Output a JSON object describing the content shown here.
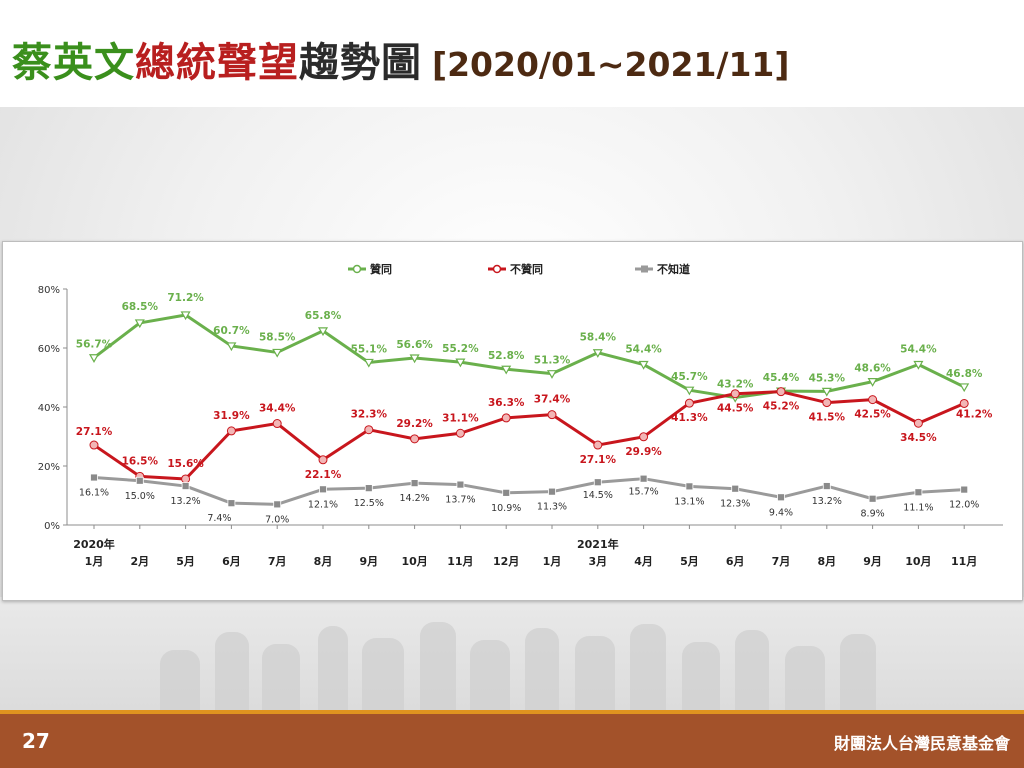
{
  "title": {
    "parts": [
      {
        "text": "蔡英文",
        "color": "#3a8f1c"
      },
      {
        "text": "總統聲望",
        "color": "#b81f1f"
      },
      {
        "text": "趨勢圖",
        "color": "#2b2b2b"
      }
    ],
    "date_range": "[2020/01~2021/11]"
  },
  "footer": {
    "page_number": "27",
    "organization": "財團法人台灣民意基金會"
  },
  "colors": {
    "approve": "#6ab04c",
    "disapprove": "#c8161d",
    "unknown": "#9a9a9a",
    "footer_bg": "#a3522a",
    "footer_stripe": "#e0931f"
  },
  "chart_data": {
    "type": "line",
    "title": "",
    "xlabel": "",
    "ylabel": "",
    "ylim": [
      0,
      80
    ],
    "y_ticks": [
      "0%",
      "20%",
      "40%",
      "60%",
      "80%"
    ],
    "grid": false,
    "legend_position": "top-center",
    "year_labels": [
      {
        "index": 0,
        "text": "2020年"
      },
      {
        "index": 11,
        "text": "2021年"
      }
    ],
    "categories": [
      "1月",
      "2月",
      "5月",
      "6月",
      "7月",
      "8月",
      "9月",
      "10月",
      "11月",
      "12月",
      "1月",
      "3月",
      "4月",
      "5月",
      "6月",
      "7月",
      "8月",
      "9月",
      "10月",
      "11月"
    ],
    "series": [
      {
        "name": "贊同",
        "color": "#6ab04c",
        "values": [
          56.7,
          68.5,
          71.2,
          60.7,
          58.5,
          65.8,
          55.1,
          56.6,
          55.2,
          52.8,
          51.3,
          58.4,
          54.4,
          45.7,
          43.2,
          45.4,
          45.3,
          48.6,
          54.4,
          46.8
        ],
        "labels": [
          "56.7%",
          "68.5%",
          "71.2%",
          "60.7%",
          "58.5%",
          "65.8%",
          "55.1%",
          "56.6%",
          "55.2%",
          "52.8%",
          "51.3%",
          "58.4%",
          "54.4%",
          "45.7%",
          "43.2%",
          "45.4%",
          "45.3%",
          "48.6%",
          "54.4%",
          "46.8%"
        ]
      },
      {
        "name": "不贊同",
        "color": "#c8161d",
        "values": [
          27.1,
          16.5,
          15.6,
          31.9,
          34.4,
          22.1,
          32.3,
          29.2,
          31.1,
          36.3,
          37.4,
          27.1,
          29.9,
          41.3,
          44.5,
          45.2,
          41.5,
          42.5,
          34.5,
          41.2
        ],
        "labels": [
          "27.1%",
          "16.5%",
          "15.6%",
          "31.9%",
          "34.4%",
          "22.1%",
          "32.3%",
          "29.2%",
          "31.1%",
          "36.3%",
          "37.4%",
          "27.1%",
          "29.9%",
          "41.3%",
          "44.5%",
          "45.2%",
          "41.5%",
          "42.5%",
          "34.5%",
          "41.2%"
        ]
      },
      {
        "name": "不知道",
        "color": "#9a9a9a",
        "values": [
          16.1,
          15.0,
          13.2,
          7.4,
          7.0,
          12.1,
          12.5,
          14.2,
          13.7,
          10.9,
          11.3,
          14.5,
          15.7,
          13.1,
          12.3,
          9.4,
          13.2,
          8.9,
          11.1,
          12.0
        ],
        "labels": [
          "16.1%",
          "15.0%",
          "13.2%",
          "7.4%",
          "7.0%",
          "12.1%",
          "12.5%",
          "14.2%",
          "13.7%",
          "10.9%",
          "11.3%",
          "14.5%",
          "15.7%",
          "13.1%",
          "12.3%",
          "9.4%",
          "13.2%",
          "8.9%",
          "11.1%",
          "12.0%"
        ]
      }
    ]
  }
}
